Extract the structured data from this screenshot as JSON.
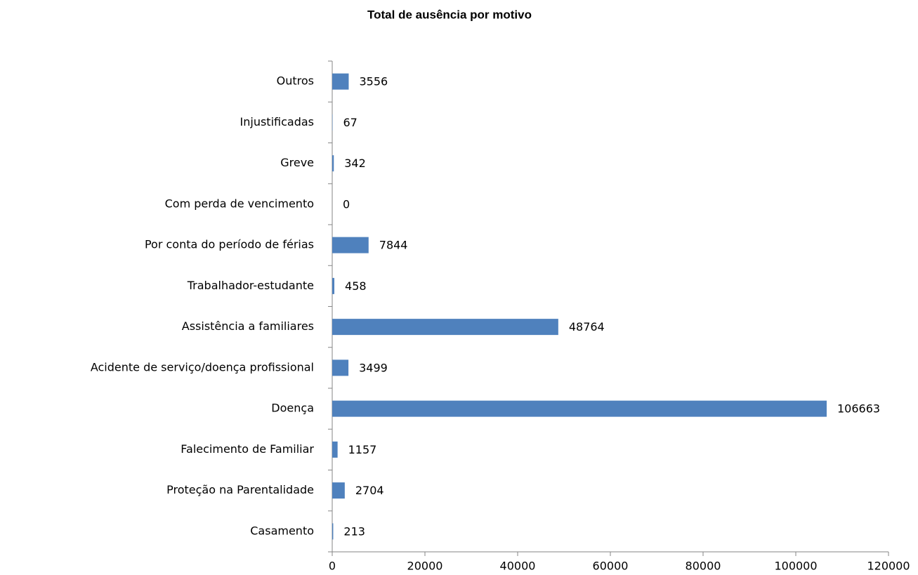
{
  "chart_data": {
    "type": "bar",
    "orientation": "horizontal",
    "title": "Total de ausência por motivo",
    "categories": [
      "Casamento",
      "Proteção na Parentalidade",
      "Falecimento de Familiar",
      "Doença",
      "Acidente de serviço/doença profissional",
      "Assistência a familiares",
      "Trabalhador-estudante",
      "Por conta do período de férias",
      "Com perda de vencimento",
      "Greve",
      "Injustificadas",
      "Outros"
    ],
    "values": [
      213,
      2704,
      1157,
      106663,
      3499,
      48764,
      458,
      7844,
      0,
      342,
      67,
      3556
    ],
    "color": "#4f81bd",
    "xlim": [
      0,
      120000
    ],
    "xticks": [
      0,
      20000,
      40000,
      60000,
      80000,
      100000,
      120000
    ],
    "grid": false
  }
}
